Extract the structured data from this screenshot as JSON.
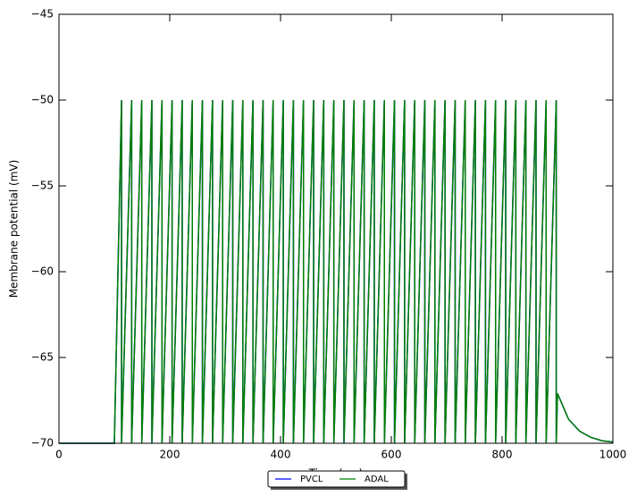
{
  "chart_data": {
    "type": "line",
    "xlabel": "Time (ms)",
    "ylabel": "Membrane potential (mV)",
    "xlim": [
      0,
      1000
    ],
    "ylim": [
      -70,
      -45
    ],
    "xticks": [
      0,
      200,
      400,
      600,
      800,
      1000
    ],
    "yticks": [
      {
        "value": -70,
        "label": "−70"
      },
      {
        "value": -65,
        "label": "−65"
      },
      {
        "value": -60,
        "label": "−60"
      },
      {
        "value": -55,
        "label": "−55"
      },
      {
        "value": -50,
        "label": "−50"
      },
      {
        "value": -45,
        "label": "−45"
      }
    ],
    "legend": "lower center",
    "x": [
      0,
      100,
      113,
      113,
      131.25,
      131.25,
      149.5,
      149.5,
      167.75,
      167.75,
      186,
      186,
      204.25,
      204.25,
      222.5,
      222.5,
      240.75,
      240.75,
      259,
      259,
      277.25,
      277.25,
      295.5,
      295.5,
      313.75,
      313.75,
      332,
      332,
      350.25,
      350.25,
      368.5,
      368.5,
      386.75,
      386.75,
      405,
      405,
      423.25,
      423.25,
      441.5,
      441.5,
      459.75,
      459.75,
      478,
      478,
      496.25,
      496.25,
      514.5,
      514.5,
      532.75,
      532.75,
      551,
      551,
      569.25,
      569.25,
      587.5,
      587.5,
      605.75,
      605.75,
      624,
      624,
      642.25,
      642.25,
      660.5,
      660.5,
      678.75,
      678.75,
      697,
      697,
      715.25,
      715.25,
      733.5,
      733.5,
      751.75,
      751.75,
      770,
      770,
      788.25,
      788.25,
      806.5,
      806.5,
      824.75,
      824.75,
      843,
      843,
      861.25,
      861.25,
      879.5,
      879.5,
      897.75,
      897.75,
      900,
      920,
      940,
      960,
      980,
      1000
    ],
    "series": [
      {
        "name": "PVCL",
        "color": "#0000ff",
        "values": [
          -70,
          -70,
          -50,
          -70,
          -50,
          -70,
          -50,
          -70,
          -50,
          -70,
          -50,
          -70,
          -50,
          -70,
          -50,
          -70,
          -50,
          -70,
          -50,
          -70,
          -50,
          -70,
          -50,
          -70,
          -50,
          -70,
          -50,
          -70,
          -50,
          -70,
          -50,
          -70,
          -50,
          -70,
          -50,
          -70,
          -50,
          -70,
          -50,
          -70,
          -50,
          -70,
          -50,
          -70,
          -50,
          -70,
          -50,
          -70,
          -50,
          -70,
          -50,
          -70,
          -50,
          -70,
          -50,
          -70,
          -50,
          -70,
          -50,
          -70,
          -50,
          -70,
          -50,
          -70,
          -50,
          -70,
          -50,
          -70,
          -50,
          -70,
          -50,
          -70,
          -50,
          -70,
          -50,
          -70,
          -50,
          -70,
          -50,
          -70,
          -50,
          -70,
          -50,
          -70,
          -50,
          -70,
          -50,
          -70,
          -50,
          -70,
          -67.1,
          -68.6,
          -69.3,
          -69.65,
          -69.85,
          -69.93
        ]
      },
      {
        "name": "ADAL",
        "color": "#008000",
        "values": [
          -70,
          -70,
          -50,
          -70,
          -50,
          -70,
          -50,
          -70,
          -50,
          -70,
          -50,
          -70,
          -50,
          -70,
          -50,
          -70,
          -50,
          -70,
          -50,
          -70,
          -50,
          -70,
          -50,
          -70,
          -50,
          -70,
          -50,
          -70,
          -50,
          -70,
          -50,
          -70,
          -50,
          -70,
          -50,
          -70,
          -50,
          -70,
          -50,
          -70,
          -50,
          -70,
          -50,
          -70,
          -50,
          -70,
          -50,
          -70,
          -50,
          -70,
          -50,
          -70,
          -50,
          -70,
          -50,
          -70,
          -50,
          -70,
          -50,
          -70,
          -50,
          -70,
          -50,
          -70,
          -50,
          -70,
          -50,
          -70,
          -50,
          -70,
          -50,
          -70,
          -50,
          -70,
          -50,
          -70,
          -50,
          -70,
          -50,
          -70,
          -50,
          -70,
          -50,
          -70,
          -50,
          -70,
          -50,
          -70,
          -50,
          -70,
          -67.1,
          -68.6,
          -69.3,
          -69.65,
          -69.85,
          -69.93
        ]
      }
    ]
  }
}
